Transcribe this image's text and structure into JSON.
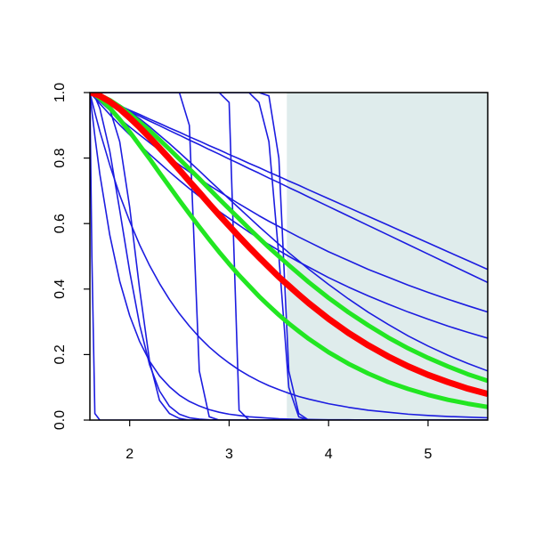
{
  "chart_data": {
    "type": "line",
    "x": [
      1.6,
      1.62,
      1.65,
      1.7,
      1.8,
      1.9,
      2.0,
      2.1,
      2.2,
      2.3,
      2.4,
      2.5,
      2.6,
      2.7,
      2.8,
      2.9,
      3.0,
      3.1,
      3.2,
      3.3,
      3.4,
      3.5,
      3.6,
      3.7,
      3.8,
      4.0,
      4.2,
      4.4,
      4.6,
      4.8,
      5.0,
      5.2,
      5.4,
      5.6
    ],
    "xlim": [
      1.6,
      5.6
    ],
    "xticks": [
      2,
      3,
      4,
      5
    ],
    "ylim": [
      0,
      1
    ],
    "yticks": [
      {
        "value": 0,
        "label": "0.0"
      },
      0.2,
      0.4,
      0.6,
      0.8,
      {
        "value": 1,
        "label": "1.0"
      }
    ],
    "shaded_x": [
      3.58,
      5.6
    ],
    "shaded_color": "#dfecec",
    "series": [
      {
        "color": "#1c1ce0",
        "linewidth": 1.6,
        "values": [
          1,
          0.997,
          0.993,
          0.987,
          0.973,
          0.96,
          0.946,
          0.933,
          0.919,
          0.906,
          0.892,
          0.879,
          0.865,
          0.852,
          0.838,
          0.825,
          0.811,
          0.798,
          0.784,
          0.771,
          0.757,
          0.744,
          0.73,
          0.717,
          0.703,
          0.676,
          0.649,
          0.622,
          0.595,
          0.568,
          0.541,
          0.514,
          0.487,
          0.46
        ]
      },
      {
        "color": "#1c1ce0",
        "linewidth": 1.6,
        "values": [
          1,
          0.997,
          0.993,
          0.986,
          0.971,
          0.957,
          0.942,
          0.928,
          0.913,
          0.899,
          0.884,
          0.87,
          0.855,
          0.841,
          0.826,
          0.812,
          0.797,
          0.783,
          0.768,
          0.754,
          0.739,
          0.725,
          0.71,
          0.696,
          0.681,
          0.652,
          0.623,
          0.594,
          0.565,
          0.536,
          0.507,
          0.478,
          0.449,
          0.42
        ]
      },
      {
        "color": "#1c1ce0",
        "linewidth": 1.6,
        "values": [
          1,
          0.994,
          0.986,
          0.973,
          0.946,
          0.92,
          0.895,
          0.871,
          0.847,
          0.824,
          0.801,
          0.779,
          0.758,
          0.737,
          0.717,
          0.698,
          0.679,
          0.66,
          0.642,
          0.624,
          0.607,
          0.591,
          0.575,
          0.559,
          0.544,
          0.514,
          0.487,
          0.46,
          0.436,
          0.412,
          0.39,
          0.369,
          0.349,
          0.33
        ]
      },
      {
        "color": "#1c1ce0",
        "linewidth": 1.6,
        "values": [
          1,
          0.993,
          0.983,
          0.966,
          0.933,
          0.901,
          0.871,
          0.841,
          0.812,
          0.785,
          0.758,
          0.732,
          0.707,
          0.683,
          0.66,
          0.637,
          0.616,
          0.595,
          0.574,
          0.555,
          0.536,
          0.518,
          0.5,
          0.483,
          0.467,
          0.435,
          0.406,
          0.379,
          0.354,
          0.33,
          0.308,
          0.287,
          0.268,
          0.25
        ]
      },
      {
        "color": "#1c1ce0",
        "linewidth": 1.6,
        "values": [
          1,
          0.999,
          0.997,
          0.993,
          0.979,
          0.962,
          0.942,
          0.92,
          0.896,
          0.87,
          0.844,
          0.817,
          0.789,
          0.761,
          0.732,
          0.704,
          0.675,
          0.647,
          0.619,
          0.591,
          0.564,
          0.537,
          0.511,
          0.486,
          0.461,
          0.414,
          0.37,
          0.329,
          0.292,
          0.257,
          0.226,
          0.198,
          0.173,
          0.15
        ]
      },
      {
        "color": "#1c1ce0",
        "linewidth": 1.6,
        "values": [
          1,
          0.998,
          0.988,
          0.952,
          0.821,
          0.641,
          0.454,
          0.291,
          0.169,
          0.089,
          0.042,
          0.018,
          0.007,
          0.003,
          0.001,
          0,
          0,
          0,
          0,
          0,
          0,
          0,
          0,
          0,
          0,
          0,
          0,
          0,
          0,
          0,
          0,
          0,
          0,
          0
        ]
      },
      {
        "color": "#1c1ce0",
        "linewidth": 1.6,
        "values": [
          1,
          0.944,
          0.867,
          0.751,
          0.565,
          0.424,
          0.319,
          0.24,
          0.18,
          0.135,
          0.102,
          0.076,
          0.057,
          0.043,
          0.032,
          0.024,
          0.018,
          0.014,
          0.01,
          0.008,
          0.006,
          0.004,
          0.003,
          0.002,
          0.002,
          0.001,
          0.001,
          0,
          0,
          0,
          0,
          0,
          0,
          0
        ]
      },
      {
        "color": "#1c1ce0",
        "linewidth": 1.6,
        "values": [
          1,
          0.975,
          0.939,
          0.882,
          0.779,
          0.687,
          0.607,
          0.535,
          0.472,
          0.417,
          0.368,
          0.325,
          0.287,
          0.253,
          0.223,
          0.197,
          0.174,
          0.153,
          0.135,
          0.119,
          0.105,
          0.093,
          0.082,
          0.072,
          0.064,
          0.05,
          0.039,
          0.03,
          0.024,
          0.018,
          0.014,
          0.011,
          0.009,
          0.007
        ]
      },
      {
        "color": "#1c1ce0",
        "linewidth": 1.6,
        "values": [
          1,
          1,
          1,
          0.99,
          0.95,
          0.85,
          0.65,
          0.4,
          0.18,
          0.06,
          0.02,
          0.005,
          0,
          0,
          0,
          0,
          0,
          0,
          0,
          0,
          0,
          0,
          0,
          0,
          0,
          0,
          0,
          0,
          0,
          0,
          0,
          0,
          0,
          0
        ]
      },
      {
        "color": "#1c1ce0",
        "linewidth": 1.6,
        "values": [
          1,
          0.5,
          0.02,
          0,
          0,
          0,
          0,
          0,
          0,
          0,
          0,
          0,
          0,
          0,
          0,
          0,
          0,
          0,
          0,
          0,
          0,
          0,
          0,
          0,
          0,
          0,
          0,
          0,
          0,
          0,
          0,
          0,
          0,
          0
        ]
      },
      {
        "color": "#1c1ce0",
        "linewidth": 1.6,
        "values": [
          1,
          1,
          1,
          1,
          1,
          1,
          1,
          1,
          1,
          1,
          1,
          1,
          0.9,
          0.15,
          0.01,
          0,
          0,
          0,
          0,
          0,
          0,
          0,
          0,
          0,
          0,
          0,
          0,
          0,
          0,
          0,
          0,
          0,
          0,
          0
        ]
      },
      {
        "color": "#1c1ce0",
        "linewidth": 1.6,
        "values": [
          1,
          1,
          1,
          1,
          1,
          1,
          1,
          1,
          1,
          1,
          1,
          1,
          1,
          1,
          1,
          1,
          0.97,
          0.03,
          0,
          0,
          0,
          0,
          0,
          0,
          0,
          0,
          0,
          0,
          0,
          0,
          0,
          0,
          0,
          0
        ]
      },
      {
        "color": "#1c1ce0",
        "linewidth": 1.6,
        "values": [
          1,
          1,
          1,
          1,
          1,
          1,
          1,
          1,
          1,
          1,
          1,
          1,
          1,
          1,
          1,
          1,
          1,
          1,
          1,
          0.97,
          0.85,
          0.5,
          0.1,
          0.01,
          0,
          0,
          0,
          0,
          0,
          0,
          0,
          0,
          0,
          0
        ]
      },
      {
        "color": "#1c1ce0",
        "linewidth": 1.6,
        "values": [
          1,
          1,
          1,
          1,
          1,
          1,
          1,
          1,
          1,
          1,
          1,
          1,
          1,
          1,
          1,
          1,
          1,
          1,
          1,
          1,
          0.99,
          0.8,
          0.15,
          0.02,
          0,
          0,
          0,
          0,
          0,
          0,
          0,
          0,
          0,
          0
        ]
      },
      {
        "color": "#22e622",
        "linewidth": 5,
        "values": [
          1,
          0.999,
          0.997,
          0.992,
          0.977,
          0.957,
          0.935,
          0.91,
          0.884,
          0.856,
          0.827,
          0.797,
          0.767,
          0.737,
          0.706,
          0.675,
          0.645,
          0.615,
          0.585,
          0.556,
          0.527,
          0.5,
          0.473,
          0.447,
          0.421,
          0.373,
          0.329,
          0.289,
          0.252,
          0.219,
          0.19,
          0.164,
          0.14,
          0.12
        ]
      },
      {
        "color": "#22e622",
        "linewidth": 5,
        "values": [
          1,
          0.998,
          0.993,
          0.982,
          0.953,
          0.918,
          0.88,
          0.839,
          0.798,
          0.755,
          0.713,
          0.671,
          0.63,
          0.59,
          0.551,
          0.513,
          0.477,
          0.442,
          0.41,
          0.378,
          0.349,
          0.321,
          0.295,
          0.271,
          0.248,
          0.207,
          0.172,
          0.142,
          0.116,
          0.095,
          0.077,
          0.062,
          0.05,
          0.04
        ]
      },
      {
        "color": "#ff0000",
        "linewidth": 7,
        "values": [
          1,
          0.999,
          0.996,
          0.99,
          0.972,
          0.95,
          0.923,
          0.894,
          0.863,
          0.831,
          0.798,
          0.764,
          0.729,
          0.695,
          0.66,
          0.626,
          0.593,
          0.56,
          0.528,
          0.497,
          0.467,
          0.437,
          0.41,
          0.383,
          0.357,
          0.309,
          0.266,
          0.228,
          0.194,
          0.164,
          0.138,
          0.116,
          0.096,
          0.08
        ]
      }
    ]
  }
}
